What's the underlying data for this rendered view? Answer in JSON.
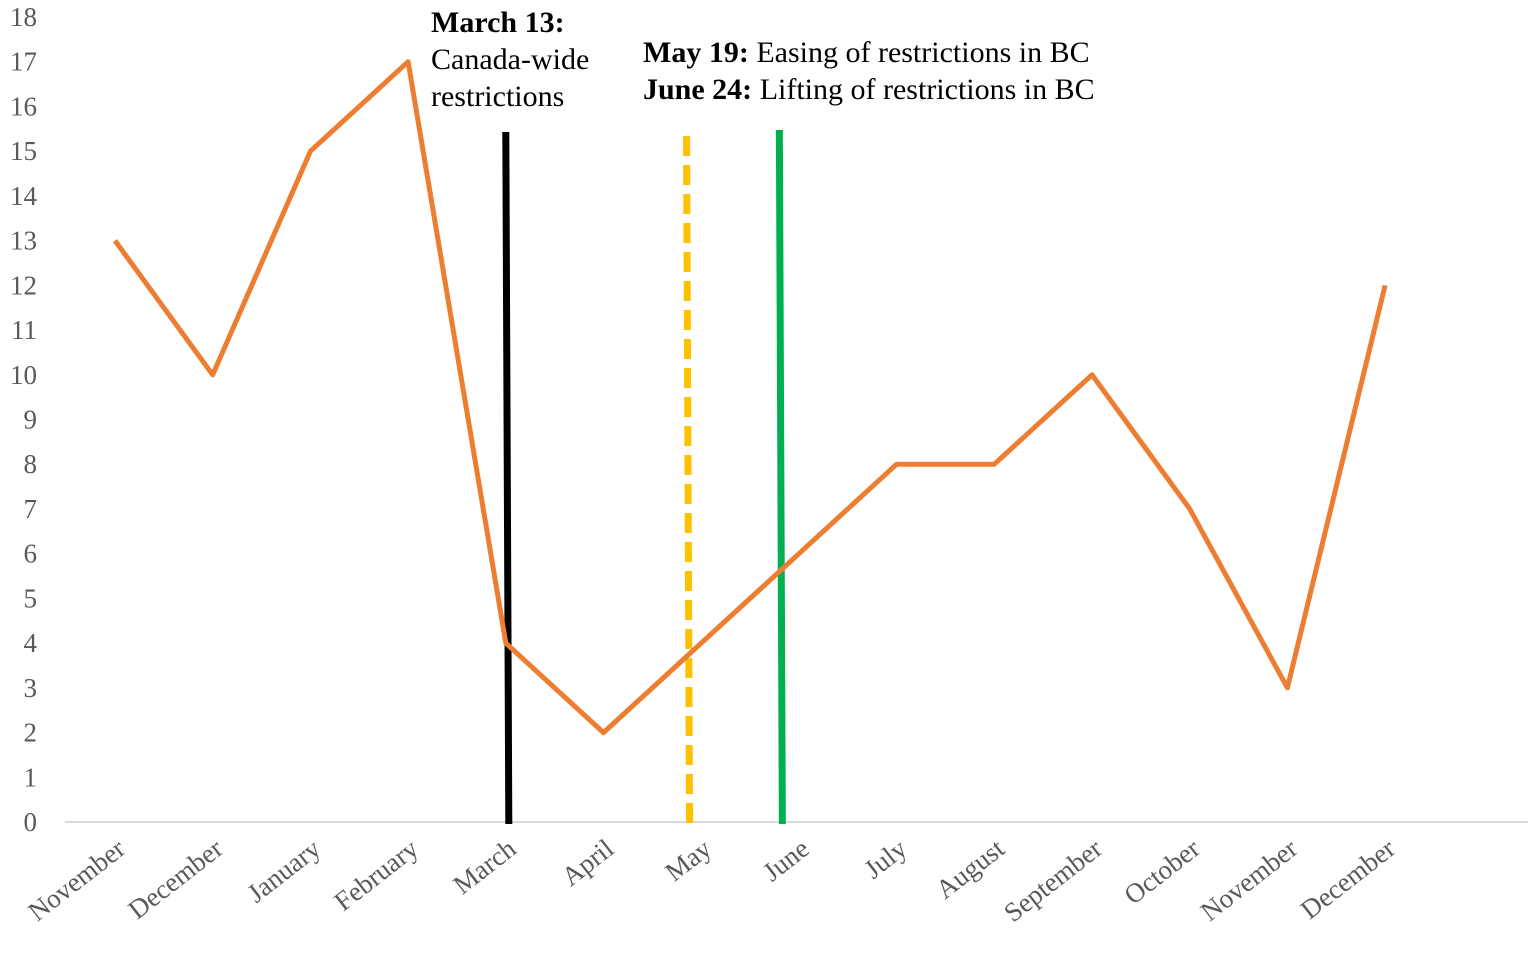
{
  "chart_data": {
    "type": "line",
    "title": "",
    "xlabel": "",
    "ylabel": "",
    "categories": [
      "November",
      "December",
      "January",
      "February",
      "March",
      "April",
      "May",
      "June",
      "July",
      "August",
      "September",
      "October",
      "November",
      "December"
    ],
    "series": [
      {
        "values": [
          13,
          10,
          15,
          17,
          4,
          2,
          4,
          6,
          8,
          8,
          10,
          7,
          3,
          12
        ]
      }
    ],
    "ylim": [
      0,
      18
    ],
    "yticks": [
      0,
      1,
      2,
      3,
      4,
      5,
      6,
      7,
      8,
      9,
      10,
      11,
      12,
      13,
      14,
      15,
      16,
      17,
      18
    ],
    "grid": false,
    "legend": "none",
    "line_color": "#ED7D31",
    "annotations": [
      {
        "bold": "March 13:",
        "text_lines": [
          "Canada-wide",
          "restrictions"
        ],
        "position": 4.0,
        "color": "#000000",
        "style": "solid"
      },
      {
        "bold": "May 19:",
        "text_lines": [
          "Easing of restrictions in BC"
        ],
        "position": 5.85,
        "color": "#FFC000",
        "style": "dashed"
      },
      {
        "bold": "June 24:",
        "text_lines": [
          "Lifting of restrictions in BC"
        ],
        "position": 6.8,
        "color": "#00B050",
        "style": "solid"
      }
    ]
  }
}
